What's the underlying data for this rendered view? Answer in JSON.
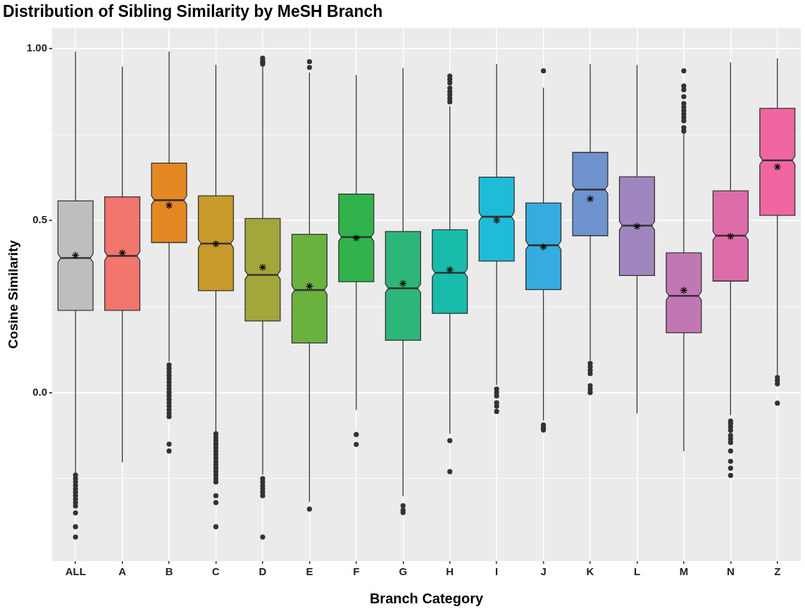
{
  "chart_data": {
    "type": "box",
    "title": "Distribution of Sibling Similarity by MeSH Branch",
    "xlabel": "Branch Category",
    "ylabel": "Cosine Similarity",
    "categories": [
      "ALL",
      "A",
      "B",
      "C",
      "D",
      "E",
      "F",
      "G",
      "H",
      "I",
      "J",
      "K",
      "L",
      "M",
      "N",
      "Z"
    ],
    "colors": [
      "#bebebe",
      "#f2756e",
      "#e58823",
      "#c99a2c",
      "#a3a63a",
      "#6bb140",
      "#2fb34a",
      "#2db57a",
      "#19bbaa",
      "#1fbcd8",
      "#35abe0",
      "#6f93cf",
      "#a086be",
      "#c077b4",
      "#de6ca8",
      "#f066a0"
    ],
    "boxes": [
      {
        "low": -0.239,
        "q1": 0.239,
        "median": 0.391,
        "q3": 0.557,
        "high": 0.991,
        "mean": 0.399,
        "outliers": [
          -0.24,
          -0.25,
          -0.26,
          -0.27,
          -0.28,
          -0.29,
          -0.3,
          -0.31,
          -0.32,
          -0.33,
          -0.35,
          -0.39,
          -0.42
        ]
      },
      {
        "low": -0.203,
        "q1": 0.239,
        "median": 0.397,
        "q3": 0.569,
        "high": 0.947,
        "mean": 0.406
      },
      {
        "low": 0.09,
        "q1": 0.436,
        "median": 0.559,
        "q3": 0.667,
        "high": 0.991,
        "mean": 0.544,
        "outliers": [
          0.08,
          0.07,
          0.06,
          0.05,
          0.04,
          0.03,
          0.02,
          0.01,
          0.0,
          -0.01,
          -0.02,
          -0.03,
          -0.04,
          -0.05,
          -0.06,
          -0.07,
          -0.15,
          -0.17
        ]
      },
      {
        "low": -0.117,
        "q1": 0.296,
        "median": 0.433,
        "q3": 0.572,
        "high": 0.953,
        "mean": 0.432,
        "outliers": [
          -0.12,
          -0.13,
          -0.14,
          -0.15,
          -0.16,
          -0.17,
          -0.18,
          -0.19,
          -0.2,
          -0.21,
          -0.22,
          -0.23,
          -0.24,
          -0.25,
          -0.26,
          -0.3,
          -0.32,
          -0.39
        ]
      },
      {
        "low": -0.239,
        "q1": 0.208,
        "median": 0.342,
        "q3": 0.506,
        "high": 0.95,
        "mean": 0.364,
        "outliers": [
          0.955,
          0.96,
          0.965,
          0.972,
          -0.25,
          -0.26,
          -0.27,
          -0.28,
          -0.29,
          -0.3,
          -0.42
        ]
      },
      {
        "low": -0.318,
        "q1": 0.144,
        "median": 0.298,
        "q3": 0.46,
        "high": 0.93,
        "mean": 0.309,
        "outliers": [
          0.945,
          0.962,
          -0.339
        ]
      },
      {
        "low": -0.051,
        "q1": 0.322,
        "median": 0.452,
        "q3": 0.577,
        "high": 0.923,
        "mean": 0.449,
        "outliers": [
          -0.122,
          -0.151
        ]
      },
      {
        "low": -0.301,
        "q1": 0.152,
        "median": 0.303,
        "q3": 0.468,
        "high": 0.943,
        "mean": 0.317,
        "outliers": [
          -0.329,
          -0.342,
          -0.349
        ]
      },
      {
        "low": -0.12,
        "q1": 0.23,
        "median": 0.348,
        "q3": 0.473,
        "high": 0.832,
        "mean": 0.357,
        "outliers": [
          0.845,
          0.855,
          0.865,
          0.875,
          0.885,
          0.9,
          0.91,
          0.92,
          -0.14,
          -0.23
        ]
      },
      {
        "low": 0.022,
        "q1": 0.382,
        "median": 0.511,
        "q3": 0.626,
        "high": 0.955,
        "mean": 0.501,
        "outliers": [
          0.01,
          0.0,
          -0.01,
          -0.03,
          -0.04,
          -0.055
        ]
      },
      {
        "low": -0.081,
        "q1": 0.299,
        "median": 0.428,
        "q3": 0.551,
        "high": 0.886,
        "mean": 0.423,
        "outliers": [
          0.935,
          -0.094,
          -0.1,
          -0.105,
          -0.109
        ]
      },
      {
        "low": 0.093,
        "q1": 0.456,
        "median": 0.59,
        "q3": 0.698,
        "high": 0.955,
        "mean": 0.563,
        "outliers": [
          0.085,
          0.075,
          0.065,
          0.055,
          0.02,
          0.01,
          0.0
        ]
      },
      {
        "low": -0.061,
        "q1": 0.34,
        "median": 0.485,
        "q3": 0.627,
        "high": 0.952,
        "mean": 0.483
      },
      {
        "low": -0.171,
        "q1": 0.174,
        "median": 0.281,
        "q3": 0.406,
        "high": 0.754,
        "mean": 0.297,
        "outliers": [
          0.935,
          0.891,
          0.88,
          0.86,
          0.84,
          0.83,
          0.82,
          0.81,
          0.8,
          0.79,
          0.77,
          0.76
        ]
      },
      {
        "low": -0.066,
        "q1": 0.324,
        "median": 0.456,
        "q3": 0.586,
        "high": 0.96,
        "mean": 0.454,
        "outliers": [
          -0.083,
          -0.09,
          -0.1,
          -0.11,
          -0.125,
          -0.135,
          -0.145,
          -0.17,
          -0.2,
          -0.22,
          -0.241
        ]
      },
      {
        "low": 0.052,
        "q1": 0.515,
        "median": 0.675,
        "q3": 0.826,
        "high": 0.971,
        "mean": 0.656,
        "outliers": [
          0.044,
          0.035,
          0.025,
          -0.031
        ]
      }
    ],
    "ylim": [
      -0.49,
      1.06
    ],
    "yticks": [
      {
        "value": -0.25,
        "label": null
      },
      {
        "value": 0,
        "label": "0.0"
      },
      {
        "value": 0.25,
        "label": null
      },
      {
        "value": 0.5,
        "label": "0.5"
      },
      {
        "value": 0.75,
        "label": null
      },
      {
        "value": 1,
        "label": "1.00"
      }
    ],
    "grid": true
  }
}
